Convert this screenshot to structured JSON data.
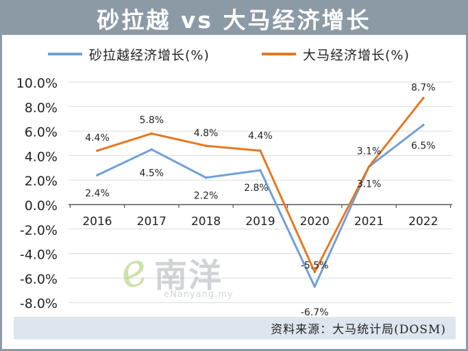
{
  "header": {
    "title": "砂拉越 vs 大马经济增长"
  },
  "watermark": {
    "logo_text": "e南洋",
    "url": "eNanyang.my"
  },
  "footer": {
    "source": "资料来源：大马统计局(DOSM)"
  },
  "colors": {
    "series_sarawak": "#6f9fd8",
    "series_malaysia": "#e8761f",
    "frame": "#8c9aa6",
    "source_bg": "#dde6ef"
  },
  "chart_data": {
    "type": "line",
    "x": [
      "2016",
      "2017",
      "2018",
      "2019",
      "2020",
      "2021",
      "2022"
    ],
    "ylim": [
      -8.0,
      10.0
    ],
    "yticks": [
      "10.0%",
      "8.0%",
      "6.0%",
      "4.0%",
      "2.0%",
      "0.0%",
      "-2.0%",
      "-4.0%",
      "-6.0%",
      "-8.0%"
    ],
    "ytick_values": [
      10,
      8,
      6,
      4,
      2,
      0,
      -2,
      -4,
      -6,
      -8
    ],
    "grid": true,
    "legend": "top",
    "series": [
      {
        "name": "砂拉越经济增长(%)",
        "values": [
          2.4,
          4.5,
          2.2,
          2.8,
          -6.7,
          3.1,
          6.5
        ],
        "labels": [
          "2.4%",
          "4.5%",
          "2.2%",
          "2.8%",
          "-6.7%",
          "3.1%",
          "6.5%"
        ]
      },
      {
        "name": "大马经济增长(%)",
        "values": [
          4.4,
          5.8,
          4.8,
          4.4,
          -5.5,
          3.1,
          8.7
        ],
        "labels": [
          "4.4%",
          "5.8%",
          "4.8%",
          "4.4%",
          "-5.5%",
          "3.1%",
          "8.7%"
        ]
      }
    ]
  }
}
